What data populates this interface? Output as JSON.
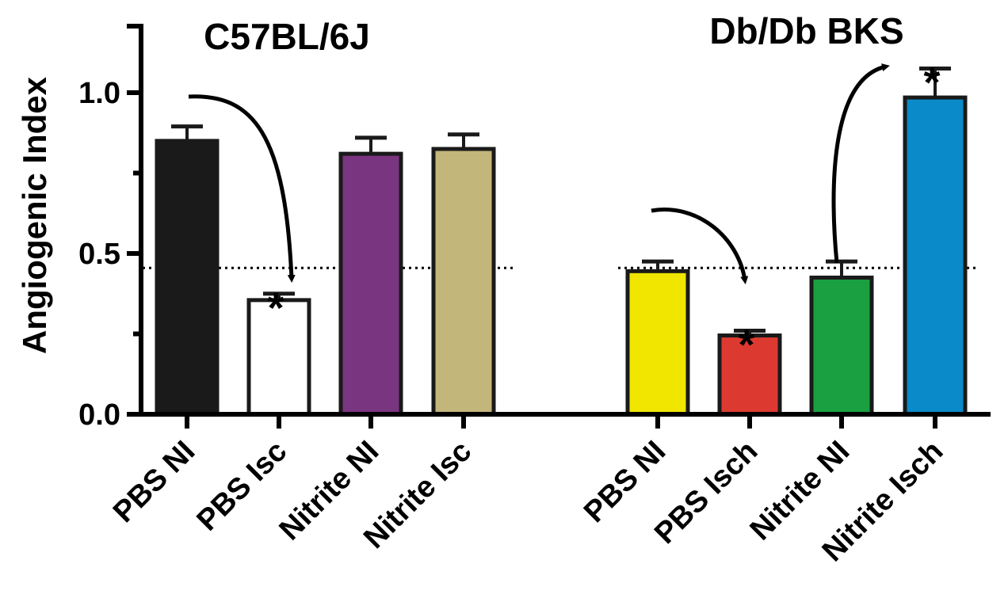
{
  "chart_data": {
    "type": "bar",
    "ylabel": "Angiogenic Index",
    "ylim": [
      0,
      1.2
    ],
    "yticks": [
      "0.0",
      "0.5",
      "1.0"
    ],
    "grid": false,
    "groups": [
      {
        "title": "C57BL/6J",
        "reference_line": 0.45,
        "bars": [
          {
            "label": "PBS NI",
            "value": 0.85,
            "error": 0.045,
            "color": "#1a1a1a",
            "significant": false
          },
          {
            "label": "PBS Isc",
            "value": 0.355,
            "error": 0.02,
            "color": "#ffffff",
            "significant": true
          },
          {
            "label": "Nitrite NI",
            "value": 0.81,
            "error": 0.05,
            "color": "#7a3580",
            "significant": false
          },
          {
            "label": "Nitrite Isc",
            "value": 0.825,
            "error": 0.045,
            "color": "#c2b67a",
            "significant": false
          }
        ],
        "arrows": [
          {
            "from": 0,
            "to": 1
          }
        ]
      },
      {
        "title": "Db/Db BKS",
        "reference_line": 0.45,
        "bars": [
          {
            "label": "PBS NI",
            "value": 0.445,
            "error": 0.03,
            "color": "#f0e600",
            "significant": false
          },
          {
            "label": "PBS Isch",
            "value": 0.245,
            "error": 0.015,
            "color": "#dc3a30",
            "significant": true
          },
          {
            "label": "Nitrite NI",
            "value": 0.425,
            "error": 0.05,
            "color": "#1aa040",
            "significant": false
          },
          {
            "label": "Nitrite Isch",
            "value": 0.985,
            "error": 0.09,
            "color": "#0a8ac8",
            "significant": true
          }
        ],
        "arrows": [
          {
            "from": 0,
            "to": 1
          },
          {
            "from": 2,
            "to": 3
          }
        ]
      }
    ],
    "significance_marker": "*"
  }
}
